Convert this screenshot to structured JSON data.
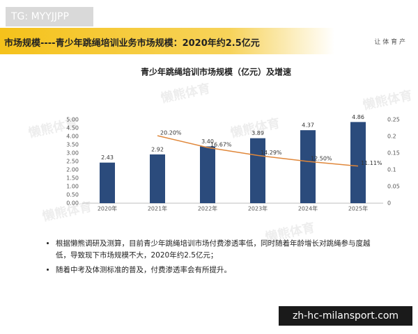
{
  "tag": "TG: MYYJJPP",
  "header": {
    "title": "市场规模----青少年跳绳培训业务市场规模：2020年约2.5亿元",
    "slogan": "让 体 育 产"
  },
  "watermark": "懒熊体育",
  "bullets": [
    "根据懒熊调研及测算，目前青少年跳绳培训市场付费渗透率低，同时随着年龄增长对跳绳参与度越低，导致现下市场规模不大，2020年约2.5亿元；",
    "随着中考及体测标准的普及，付费渗透率会有所提升。"
  ],
  "source_label": "zh-hc-milansport.com",
  "chart_data": {
    "type": "bar",
    "title": "青少年跳绳培训市场规模（亿元）及增速",
    "categories": [
      "2020年",
      "2021年",
      "2022年",
      "2023年",
      "2024年",
      "2025年"
    ],
    "series": [
      {
        "type": "bar",
        "color": "#2b4b7c",
        "values": [
          2.43,
          2.92,
          3.4,
          3.89,
          4.37,
          4.86
        ],
        "value_labels": [
          "2.43",
          "2.92",
          "3.40",
          "3.89",
          "4.37",
          "4.86"
        ]
      },
      {
        "type": "line",
        "axis": "y2",
        "color": "#e0873a",
        "values": [
          null,
          0.202,
          0.1667,
          0.1429,
          0.125,
          0.1111
        ],
        "value_labels": [
          null,
          "20.20%",
          "16.67%",
          "14.29%",
          "12.50%",
          "11.11%"
        ]
      }
    ],
    "ylim": [
      0,
      5
    ],
    "yticks": [
      {
        "value": 0,
        "label": "0.00"
      },
      {
        "value": 0.5,
        "label": "0.50"
      },
      {
        "value": 1,
        "label": "1.00"
      },
      {
        "value": 1.5,
        "label": "1.50"
      },
      {
        "value": 2,
        "label": "2.00"
      },
      {
        "value": 2.5,
        "label": "2.50"
      },
      {
        "value": 3,
        "label": "3.00"
      },
      {
        "value": 3.5,
        "label": "3.50"
      },
      {
        "value": 4,
        "label": "4.00"
      },
      {
        "value": 4.5,
        "label": "4.50"
      },
      {
        "value": 5,
        "label": "5.00"
      }
    ],
    "y2lim": [
      0,
      0.25
    ],
    "y2ticks": [
      0,
      0.05,
      0.1,
      0.15,
      0.2,
      0.25
    ]
  }
}
